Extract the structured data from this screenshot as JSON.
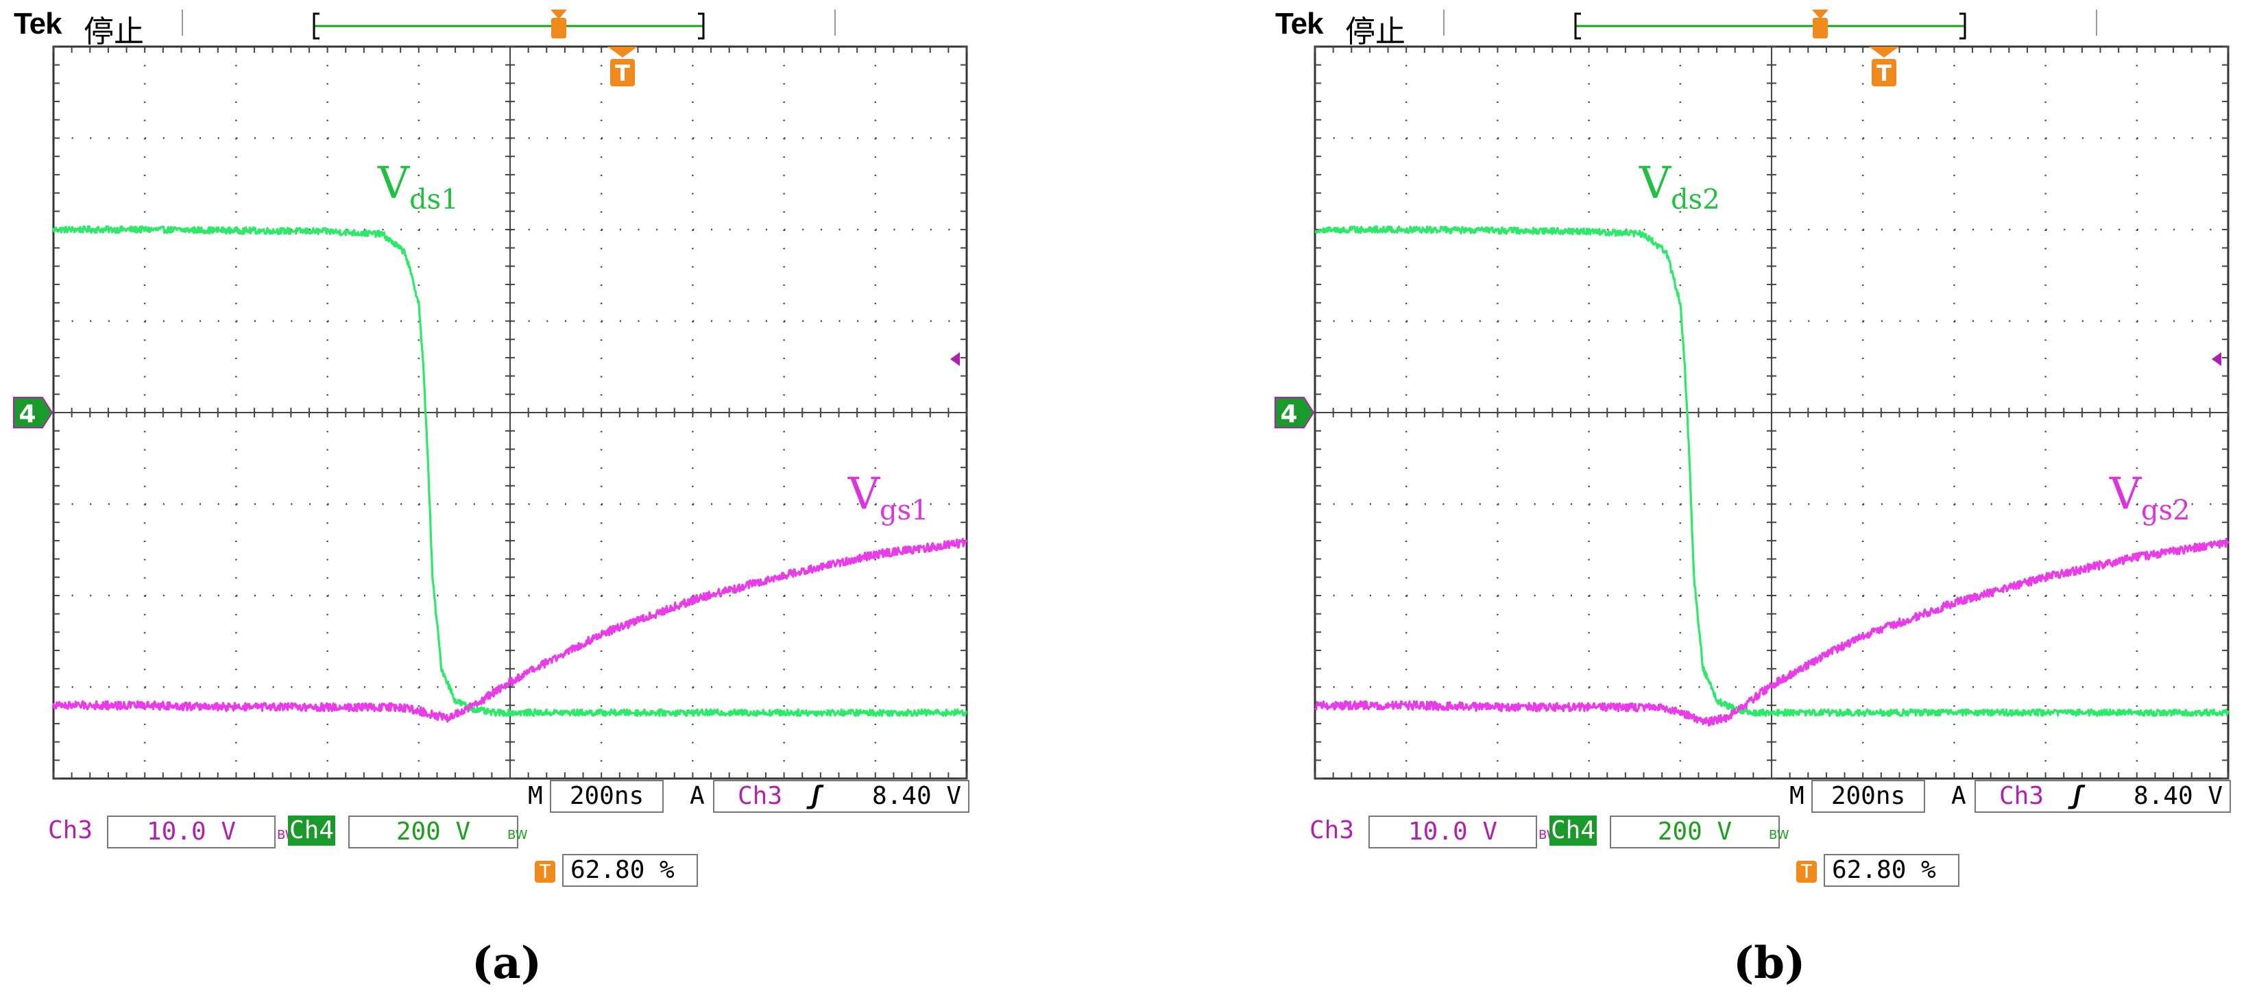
{
  "colors": {
    "ch3": "#e83ce8",
    "ch4": "#2ee86a",
    "ch3_text": "#b020b0",
    "ch4_text": "#1aa01a",
    "ch4_badge_bg": "#1a9a2a",
    "trigger": "#f08a1c",
    "grid": "#444444"
  },
  "chart_data": [
    {
      "type": "line",
      "panel_caption": "(a)",
      "header": {
        "brand": "Tek",
        "status": "停止"
      },
      "grid": {
        "x_divisions": 10,
        "y_divisions": 8,
        "minor_per_division": 5
      },
      "time_per_division": "200ns",
      "ground_marker_label": "4",
      "trigger_marker_label": "T",
      "x_unit": "divisions",
      "y_unit": "divisions",
      "series": [
        {
          "name": "Vds1",
          "label_main": "V",
          "label_sub": "ds1",
          "channel": "Ch4",
          "x": [
            0.0,
            1.0,
            2.0,
            3.0,
            3.6,
            3.85,
            4.0,
            4.05,
            4.1,
            4.15,
            4.25,
            4.4,
            4.6,
            4.8,
            5.0,
            6.0,
            7.0,
            8.0,
            9.0,
            10.0
          ],
          "y": [
            6.0,
            6.0,
            5.99,
            5.98,
            5.95,
            5.75,
            5.2,
            4.5,
            3.5,
            2.2,
            1.2,
            0.85,
            0.76,
            0.72,
            0.72,
            0.72,
            0.72,
            0.72,
            0.72,
            0.72
          ]
        },
        {
          "name": "Vgs1",
          "label_main": "V",
          "label_sub": "gs1",
          "channel": "Ch3",
          "x": [
            0.0,
            1.0,
            2.0,
            3.0,
            3.8,
            4.0,
            4.3,
            4.5,
            4.7,
            5.0,
            5.5,
            6.0,
            7.0,
            8.0,
            9.0,
            10.0
          ],
          "y": [
            0.8,
            0.8,
            0.78,
            0.78,
            0.78,
            0.74,
            0.66,
            0.74,
            0.86,
            1.05,
            1.32,
            1.58,
            1.95,
            2.22,
            2.45,
            2.58
          ]
        }
      ],
      "readouts": {
        "timebase_prefix": "M",
        "timebase": "200ns",
        "trigger_prefix": "A",
        "trigger_source": "Ch3",
        "trigger_slope_symbol": "ʃ",
        "trigger_level": "8.40 V",
        "ch3_label": "Ch3",
        "ch3_scale": "10.0 V",
        "ch4_label": "Ch4",
        "ch4_scale": "200 V",
        "bw_mark": "BW",
        "trigger_pos_icon": "T",
        "trigger_position": "62.80 %"
      }
    },
    {
      "type": "line",
      "panel_caption": "(b)",
      "header": {
        "brand": "Tek",
        "status": "停止"
      },
      "grid": {
        "x_divisions": 10,
        "y_divisions": 8,
        "minor_per_division": 5
      },
      "time_per_division": "200ns",
      "ground_marker_label": "4",
      "trigger_marker_label": "T",
      "x_unit": "divisions",
      "y_unit": "divisions",
      "series": [
        {
          "name": "Vds2",
          "label_main": "V",
          "label_sub": "ds2",
          "channel": "Ch4",
          "x": [
            0.0,
            1.0,
            2.0,
            3.0,
            3.6,
            3.85,
            4.0,
            4.05,
            4.1,
            4.15,
            4.25,
            4.4,
            4.6,
            4.8,
            5.0,
            6.0,
            7.0,
            8.0,
            9.0,
            10.0
          ],
          "y": [
            6.0,
            6.0,
            5.99,
            5.98,
            5.95,
            5.75,
            5.2,
            4.5,
            3.5,
            2.2,
            1.2,
            0.85,
            0.76,
            0.72,
            0.72,
            0.72,
            0.72,
            0.72,
            0.72,
            0.72
          ]
        },
        {
          "name": "Vgs2",
          "label_main": "V",
          "label_sub": "gs2",
          "channel": "Ch3",
          "x": [
            0.0,
            1.0,
            2.0,
            3.0,
            3.8,
            4.0,
            4.3,
            4.5,
            4.7,
            5.0,
            5.5,
            6.0,
            7.0,
            8.0,
            9.0,
            10.0
          ],
          "y": [
            0.8,
            0.8,
            0.78,
            0.78,
            0.78,
            0.72,
            0.62,
            0.66,
            0.8,
            1.02,
            1.3,
            1.56,
            1.92,
            2.2,
            2.42,
            2.58
          ]
        }
      ],
      "readouts": {
        "timebase_prefix": "M",
        "timebase": "200ns",
        "trigger_prefix": "A",
        "trigger_source": "Ch3",
        "trigger_slope_symbol": "ʃ",
        "trigger_level": "8.40 V",
        "ch3_label": "Ch3",
        "ch3_scale": "10.0 V",
        "ch4_label": "Ch4",
        "ch4_scale": "200 V",
        "bw_mark": "BW",
        "trigger_pos_icon": "T",
        "trigger_position": "62.80 %"
      }
    }
  ]
}
